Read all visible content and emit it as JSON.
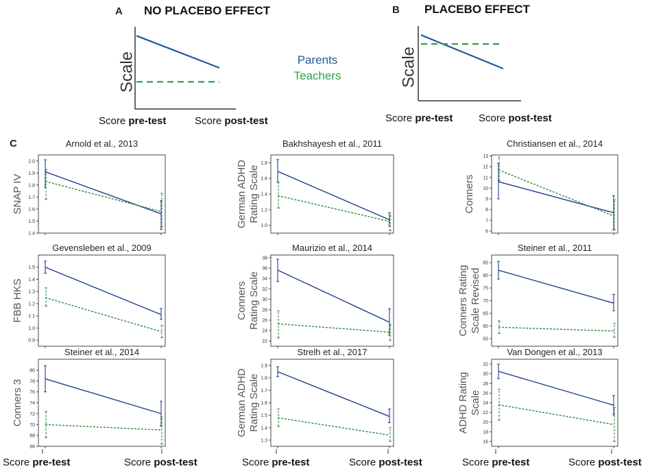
{
  "colors": {
    "parents": "#1f3e8c",
    "teachers": "#2a8a3a",
    "concept_parents": "#1f5a96",
    "concept_teachers": "#2e9e4a",
    "axis": "#333333",
    "text": "#333333"
  },
  "legend": {
    "parents": "Parents",
    "teachers": "Teachers"
  },
  "panel_a": {
    "letter": "A",
    "title": "NO PLACEBO EFFECT",
    "ylabel": "Scale",
    "xlabel_pre_prefix": "Score ",
    "xlabel_pre_bold": "pre-test",
    "xlabel_post_prefix": "Score ",
    "xlabel_post_bold": "post-test"
  },
  "panel_b": {
    "letter": "B",
    "title": "PLACEBO EFFECT",
    "ylabel": "Scale",
    "xlabel_pre_prefix": "Score ",
    "xlabel_pre_bold": "pre-test",
    "xlabel_post_prefix": "Score ",
    "xlabel_post_bold": "post-test"
  },
  "panel_c": {
    "letter": "C",
    "xlabel_pre_prefix": "Score ",
    "xlabel_pre_bold": "pre-test",
    "xlabel_post_prefix": "Score ",
    "xlabel_post_bold": "post-test"
  },
  "chart_data": [
    {
      "type": "line",
      "id": "concept-a",
      "title": "NO PLACEBO EFFECT",
      "ylabel": "Scale",
      "categories": [
        "pre-test",
        "post-test"
      ],
      "ylim": [
        0,
        10
      ],
      "series": [
        {
          "name": "Parents",
          "values": [
            8.9,
            5.0
          ]
        },
        {
          "name": "Teachers",
          "values": [
            3.3,
            3.3
          ]
        }
      ]
    },
    {
      "type": "line",
      "id": "concept-b",
      "title": "PLACEBO EFFECT",
      "ylabel": "Scale",
      "categories": [
        "pre-test",
        "post-test"
      ],
      "ylim": [
        0,
        10
      ],
      "series": [
        {
          "name": "Parents",
          "values": [
            8.8,
            4.3
          ]
        },
        {
          "name": "Teachers",
          "values": [
            7.6,
            7.6
          ]
        }
      ]
    },
    {
      "type": "line",
      "title": "Arnold et al., 2013",
      "ylabel": [
        "SNAP IV"
      ],
      "categories": [
        "pre-test",
        "post-test"
      ],
      "ylim": [
        1.4,
        2.05
      ],
      "ticks": [
        1.4,
        1.5,
        1.6,
        1.7,
        1.8,
        1.9,
        2.0
      ],
      "tick_labels": [
        "1.4",
        "1.5",
        "1.6",
        "1.7",
        "1.8",
        "1.9",
        "2.0"
      ],
      "series": [
        {
          "name": "Parents",
          "values": [
            1.91,
            1.56
          ],
          "err_low": [
            1.78,
            1.43
          ],
          "err_high": [
            2.01,
            1.67
          ]
        },
        {
          "name": "Teachers",
          "values": [
            1.83,
            1.58
          ],
          "err_low": [
            1.68,
            1.45
          ],
          "err_high": [
            1.93,
            1.73
          ]
        }
      ]
    },
    {
      "type": "line",
      "title": "Bakhshayesh et al., 2011",
      "ylabel": [
        "German ADHD",
        "Rating Scale"
      ],
      "categories": [
        "pre-test",
        "post-test"
      ],
      "ylim": [
        0.9,
        1.9
      ],
      "ticks": [
        1.0,
        1.2,
        1.4,
        1.6,
        1.8
      ],
      "tick_labels": [
        "1.0",
        "1.2",
        "1.4",
        "1.6",
        "1.8"
      ],
      "series": [
        {
          "name": "Parents",
          "values": [
            1.69,
            1.07
          ],
          "err_low": [
            1.55,
            0.99
          ],
          "err_high": [
            1.84,
            1.16
          ]
        },
        {
          "name": "Teachers",
          "values": [
            1.38,
            1.05
          ],
          "err_low": [
            1.22,
            0.93
          ],
          "err_high": [
            1.55,
            1.12
          ]
        }
      ]
    },
    {
      "type": "line",
      "title": "Christiansen et al., 2014",
      "ylabel": [
        "Conners"
      ],
      "categories": [
        "pre-test",
        "post-test"
      ],
      "ylim": [
        5.8,
        13.1
      ],
      "ticks": [
        6,
        7,
        8,
        9,
        10,
        11,
        12,
        13
      ],
      "tick_labels": [
        "6",
        "7",
        "8",
        "9",
        "10",
        "11",
        "12",
        "13"
      ],
      "series": [
        {
          "name": "Parents",
          "values": [
            10.6,
            7.7
          ],
          "err_low": [
            9.0,
            6.1
          ],
          "err_high": [
            12.3,
            9.3
          ]
        },
        {
          "name": "Teachers",
          "values": [
            11.7,
            7.4
          ],
          "err_low": [
            10.7,
            6.1
          ],
          "err_high": [
            12.9,
            8.9
          ]
        }
      ]
    },
    {
      "type": "line",
      "title": "Gevensleben et al., 2009",
      "ylabel": [
        "FBB HKS"
      ],
      "categories": [
        "pre-test",
        "post-test"
      ],
      "ylim": [
        0.85,
        1.6
      ],
      "ticks": [
        0.9,
        1.0,
        1.1,
        1.2,
        1.3,
        1.4,
        1.5
      ],
      "tick_labels": [
        "0.9",
        "1.0",
        "1.1",
        "1.2",
        "1.3",
        "1.4",
        "1.5"
      ],
      "series": [
        {
          "name": "Parents",
          "values": [
            1.5,
            1.11
          ],
          "err_low": [
            1.45,
            1.07
          ],
          "err_high": [
            1.55,
            1.16
          ]
        },
        {
          "name": "Teachers",
          "values": [
            1.25,
            0.97
          ],
          "err_low": [
            1.18,
            0.92
          ],
          "err_high": [
            1.33,
            1.02
          ]
        }
      ]
    },
    {
      "type": "line",
      "title": "Maurizio et al., 2014",
      "ylabel": [
        "Conners",
        "Rating Scale"
      ],
      "categories": [
        "pre-test",
        "post-test"
      ],
      "ylim": [
        21.0,
        38.5
      ],
      "ticks": [
        22,
        24,
        26,
        28,
        30,
        32,
        34,
        36,
        38
      ],
      "tick_labels": [
        "22",
        "24",
        "26",
        "28",
        "30",
        "32",
        "34",
        "36",
        "38"
      ],
      "series": [
        {
          "name": "Parents",
          "values": [
            35.6,
            25.6
          ],
          "err_low": [
            33.4,
            23.1
          ],
          "err_high": [
            37.7,
            28.2
          ]
        },
        {
          "name": "Teachers",
          "values": [
            25.3,
            23.7
          ],
          "err_low": [
            22.6,
            22.1
          ],
          "err_high": [
            27.8,
            25.2
          ]
        }
      ]
    },
    {
      "type": "line",
      "title": "Steiner et al., 2011",
      "ylabel": [
        "Conners Rating",
        "Scale Revised"
      ],
      "categories": [
        "pre-test",
        "post-test"
      ],
      "ylim": [
        52,
        88
      ],
      "ticks": [
        55,
        60,
        65,
        70,
        75,
        80,
        85
      ],
      "tick_labels": [
        "55",
        "60",
        "65",
        "70",
        "75",
        "80",
        "85"
      ],
      "series": [
        {
          "name": "Parents",
          "values": [
            82.0,
            69.0
          ],
          "err_low": [
            78.5,
            66.0
          ],
          "err_high": [
            85.5,
            72.5
          ]
        },
        {
          "name": "Teachers",
          "values": [
            59.5,
            58.0
          ],
          "err_low": [
            57.0,
            55.5
          ],
          "err_high": [
            62.0,
            61.0
          ]
        }
      ]
    },
    {
      "type": "line",
      "title": "Steiner et al., 2014",
      "ylabel": [
        "Conners 3"
      ],
      "categories": [
        "pre-test",
        "post-test"
      ],
      "ylim": [
        66,
        82
      ],
      "ticks": [
        66,
        68,
        70,
        72,
        74,
        76,
        78,
        80
      ],
      "tick_labels": [
        "66",
        "68",
        "70",
        "72",
        "74",
        "76",
        "78",
        "80"
      ],
      "series": [
        {
          "name": "Parents",
          "values": [
            78.4,
            72.0
          ],
          "err_low": [
            76.0,
            69.7
          ],
          "err_high": [
            80.8,
            74.3
          ]
        },
        {
          "name": "Teachers",
          "values": [
            70.0,
            69.0
          ],
          "err_low": [
            67.6,
            66.4
          ],
          "err_high": [
            72.4,
            71.4
          ]
        }
      ]
    },
    {
      "type": "line",
      "title": "Strelh et al., 2017",
      "ylabel": [
        "German ADHD",
        "Rating Scale"
      ],
      "categories": [
        "pre-test",
        "post-test"
      ],
      "ylim": [
        1.25,
        1.95
      ],
      "ticks": [
        1.3,
        1.4,
        1.5,
        1.6,
        1.7,
        1.8,
        1.9
      ],
      "tick_labels": [
        "1.3",
        "1.4",
        "1.5",
        "1.6",
        "1.7",
        "1.8",
        "1.9"
      ],
      "series": [
        {
          "name": "Parents",
          "values": [
            1.85,
            1.49
          ],
          "err_low": [
            1.81,
            1.44
          ],
          "err_high": [
            1.89,
            1.55
          ]
        },
        {
          "name": "Teachers",
          "values": [
            1.48,
            1.34
          ],
          "err_low": [
            1.41,
            1.29
          ],
          "err_high": [
            1.55,
            1.4
          ]
        }
      ]
    },
    {
      "type": "line",
      "title": "Van Dongen et al., 2013",
      "ylabel": [
        "ADHD Rating",
        "Scale"
      ],
      "categories": [
        "pre-test",
        "post-test"
      ],
      "ylim": [
        15,
        33
      ],
      "ticks": [
        16,
        18,
        20,
        22,
        24,
        26,
        28,
        30,
        32
      ],
      "tick_labels": [
        "16",
        "18",
        "20",
        "22",
        "24",
        "26",
        "28",
        "30",
        "32"
      ],
      "series": [
        {
          "name": "Parents",
          "values": [
            30.5,
            23.5
          ],
          "err_low": [
            29.0,
            21.5
          ],
          "err_high": [
            32.0,
            25.5
          ]
        },
        {
          "name": "Teachers",
          "values": [
            23.6,
            19.5
          ],
          "err_low": [
            20.4,
            16.0
          ],
          "err_high": [
            26.8,
            23.0
          ]
        }
      ]
    }
  ]
}
